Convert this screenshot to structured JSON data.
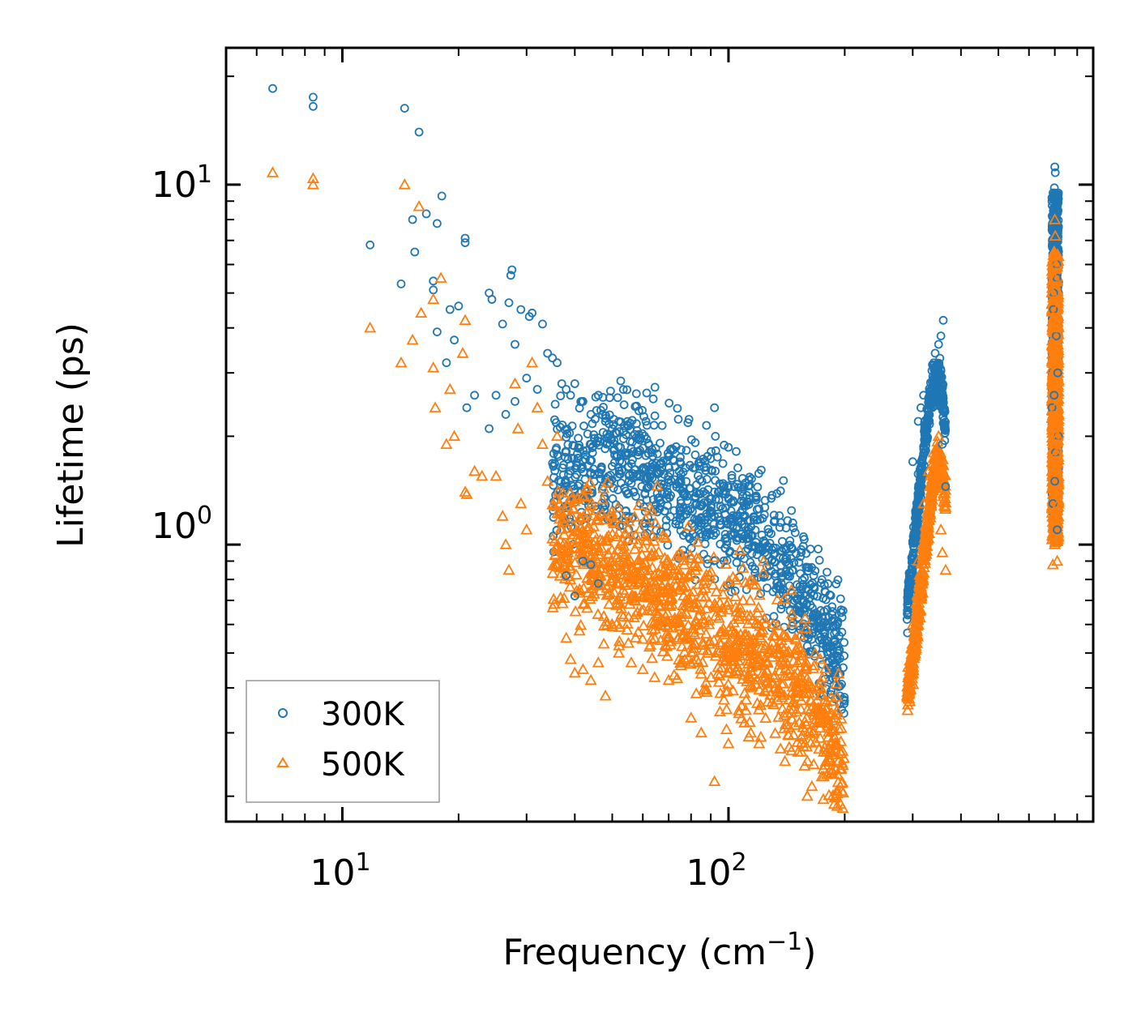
{
  "chart_data": {
    "type": "scatter",
    "title": "",
    "xlabel": "Frequency (cm",
    "xlabel_sup": "−1",
    "xlabel_suffix": ")",
    "ylabel": "Lifetime (ps)",
    "xscale": "log",
    "yscale": "log",
    "xlim": [
      5,
      880
    ],
    "ylim": [
      0.17,
      24
    ],
    "x_ticks": [
      {
        "base": "10",
        "exp": "1",
        "value": 10
      },
      {
        "base": "10",
        "exp": "2",
        "value": 100
      }
    ],
    "y_ticks": [
      {
        "base": "10",
        "exp": "0",
        "value": 1
      },
      {
        "base": "10",
        "exp": "1",
        "value": 10
      }
    ],
    "legend_position": "lower-left",
    "series": [
      {
        "name": "300K",
        "color": "#1f77b4",
        "marker": "circle",
        "points": [
          [
            6.6,
            18.5
          ],
          [
            8.4,
            17.5
          ],
          [
            8.4,
            16.5
          ],
          [
            14.5,
            16.3
          ],
          [
            15.8,
            14.0
          ],
          [
            11.8,
            6.8
          ],
          [
            14.2,
            5.3
          ],
          [
            15.2,
            8.0
          ],
          [
            15.4,
            6.5
          ],
          [
            16.5,
            8.3
          ],
          [
            17.2,
            5.4
          ],
          [
            17.2,
            5.1
          ],
          [
            17.6,
            7.8
          ],
          [
            18.1,
            9.3
          ],
          [
            19.0,
            4.5
          ],
          [
            20.0,
            4.6
          ],
          [
            20.8,
            6.9
          ],
          [
            20.8,
            7.1
          ],
          [
            17.6,
            3.9
          ],
          [
            18.6,
            3.2
          ],
          [
            19.5,
            3.7
          ],
          [
            22.0,
            2.6
          ],
          [
            24.0,
            5.0
          ],
          [
            24.4,
            4.8
          ],
          [
            26.0,
            4.1
          ],
          [
            27.0,
            4.7
          ],
          [
            27.3,
            5.6
          ],
          [
            27.5,
            5.8
          ],
          [
            28.0,
            3.6
          ],
          [
            29.0,
            4.5
          ],
          [
            30.5,
            4.3
          ],
          [
            31.0,
            4.4
          ],
          [
            33.0,
            4.1
          ],
          [
            21.0,
            2.4
          ],
          [
            24.0,
            2.1
          ],
          [
            25.0,
            2.6
          ],
          [
            26.5,
            2.3
          ],
          [
            28.0,
            2.5
          ],
          [
            30.0,
            2.9
          ],
          [
            32.0,
            2.7
          ],
          [
            34.0,
            3.4
          ],
          [
            35.0,
            3.3
          ],
          [
            36.0,
            3.2
          ],
          [
            37.0,
            2.8
          ],
          [
            38.0,
            2.7
          ],
          [
            39.0,
            2.6
          ],
          [
            40.0,
            2.8
          ],
          [
            42.0,
            2.5
          ],
          [
            44.0,
            2.3
          ],
          [
            46.0,
            2.6
          ],
          [
            48.0,
            2.2
          ],
          [
            50.0,
            2.1
          ],
          [
            52.0,
            2.2
          ],
          [
            92.0,
            2.4
          ],
          [
            92.5,
            2.0
          ],
          [
            38.0,
            0.82
          ],
          [
            40.0,
            0.72
          ],
          [
            42.0,
            0.9
          ],
          [
            44.0,
            0.88
          ],
          [
            46.0,
            0.78
          ],
          [
            360.0,
            4.2
          ],
          [
            355.0,
            3.8
          ],
          [
            350.0,
            3.6
          ],
          [
            365.0,
            1.45
          ],
          [
            358.0,
            1.9
          ],
          [
            310.0,
            2.2
          ],
          [
            315.0,
            2.4
          ],
          [
            320.0,
            2.6
          ],
          [
            300.0,
            1.7
          ],
          [
            290.0,
            0.62
          ],
          [
            700.0,
            11.2
          ],
          [
            702.0,
            10.8
          ],
          [
            698.0,
            9.8
          ],
          [
            705.0,
            9.0
          ],
          [
            690.0,
            7.0
          ],
          [
            708.0,
            6.0
          ],
          [
            695.0,
            5.0
          ],
          [
            712.0,
            3.0
          ],
          [
            688.0,
            2.4
          ],
          [
            715.0,
            2.0
          ],
          [
            692.0,
            1.3
          ],
          [
            710.0,
            1.1
          ],
          [
            700.0,
            1.5
          ],
          [
            703.0,
            1.8
          ],
          [
            697.0,
            2.6
          ],
          [
            706.0,
            3.8
          ],
          [
            694.0,
            4.5
          ],
          [
            709.0,
            5.5
          ],
          [
            701.0,
            7.5
          ],
          [
            699.0,
            8.5
          ]
        ]
      },
      {
        "name": "500K",
        "color": "#ff7f0e",
        "marker": "triangle",
        "points": [
          [
            6.6,
            10.8
          ],
          [
            8.4,
            10.4
          ],
          [
            8.4,
            10.0
          ],
          [
            14.5,
            10.0
          ],
          [
            15.8,
            8.7
          ],
          [
            11.8,
            4.0
          ],
          [
            14.2,
            3.2
          ],
          [
            15.2,
            3.7
          ],
          [
            16.0,
            4.4
          ],
          [
            17.2,
            4.8
          ],
          [
            17.2,
            3.1
          ],
          [
            17.4,
            2.4
          ],
          [
            18.0,
            5.5
          ],
          [
            18.6,
            1.9
          ],
          [
            19.0,
            2.7
          ],
          [
            19.5,
            2.0
          ],
          [
            20.5,
            3.4
          ],
          [
            20.8,
            4.2
          ],
          [
            20.8,
            1.4
          ],
          [
            21.0,
            1.38
          ],
          [
            22.0,
            1.6
          ],
          [
            23.0,
            1.55
          ],
          [
            25.0,
            1.55
          ],
          [
            26.0,
            1.2
          ],
          [
            26.5,
            1.0
          ],
          [
            27.0,
            0.85
          ],
          [
            28.0,
            2.8
          ],
          [
            28.5,
            2.1
          ],
          [
            29.0,
            1.3
          ],
          [
            30.0,
            1.1
          ],
          [
            31.0,
            3.2
          ],
          [
            32.0,
            2.4
          ],
          [
            33.0,
            1.9
          ],
          [
            34.0,
            1.5
          ],
          [
            36.0,
            2.0
          ],
          [
            38.0,
            0.55
          ],
          [
            39.0,
            0.48
          ],
          [
            40.0,
            0.44
          ],
          [
            42.0,
            0.45
          ],
          [
            44.0,
            0.42
          ],
          [
            46.0,
            0.47
          ],
          [
            48.0,
            0.38
          ],
          [
            52.0,
            0.5
          ],
          [
            56.0,
            0.47
          ],
          [
            60.0,
            0.45
          ],
          [
            70.0,
            0.42
          ],
          [
            80.0,
            0.33
          ],
          [
            85.0,
            0.3
          ],
          [
            92.0,
            0.22
          ],
          [
            100.0,
            0.28
          ],
          [
            110.0,
            0.32
          ],
          [
            120.0,
            0.28
          ],
          [
            140.0,
            0.25
          ],
          [
            160.0,
            0.2
          ],
          [
            180.0,
            0.23
          ],
          [
            195.0,
            0.19
          ],
          [
            190.0,
            0.2
          ],
          [
            365.0,
            0.85
          ],
          [
            358.0,
            0.95
          ],
          [
            355.0,
            1.1
          ],
          [
            350.0,
            2.0
          ],
          [
            340.0,
            1.8
          ],
          [
            330.0,
            1.6
          ],
          [
            320.0,
            1.3
          ],
          [
            310.0,
            0.9
          ],
          [
            300.0,
            0.6
          ],
          [
            290.0,
            0.38
          ],
          [
            700.0,
            8.0
          ],
          [
            702.0,
            7.2
          ],
          [
            698.0,
            6.5
          ],
          [
            705.0,
            6.0
          ],
          [
            690.0,
            5.0
          ],
          [
            708.0,
            4.0
          ],
          [
            695.0,
            3.2
          ],
          [
            712.0,
            2.0
          ],
          [
            688.0,
            1.6
          ],
          [
            715.0,
            1.3
          ],
          [
            692.0,
            0.88
          ],
          [
            710.0,
            0.9
          ],
          [
            700.0,
            1.0
          ],
          [
            703.0,
            2.4
          ],
          [
            697.0,
            2.8
          ],
          [
            706.0,
            1.8
          ],
          [
            694.0,
            3.6
          ],
          [
            709.0,
            4.5
          ],
          [
            701.0,
            5.5
          ],
          [
            699.0,
            1.2
          ]
        ]
      }
    ],
    "dense_regions": [
      {
        "series": "300K",
        "x_range": [
          35,
          200
        ],
        "lifetime_at": [
          [
            35,
            1.5
          ],
          [
            50,
            1.7
          ],
          [
            60,
            1.65
          ],
          [
            70,
            1.45
          ],
          [
            90,
            1.25
          ],
          [
            110,
            1.15
          ],
          [
            130,
            1.0
          ],
          [
            150,
            0.82
          ],
          [
            170,
            0.65
          ],
          [
            190,
            0.5
          ],
          [
            200,
            0.45
          ]
        ],
        "spread": 0.32
      },
      {
        "series": "500K",
        "x_range": [
          35,
          200
        ],
        "lifetime_at": [
          [
            35,
            1.05
          ],
          [
            50,
            0.85
          ],
          [
            60,
            0.8
          ],
          [
            70,
            0.72
          ],
          [
            90,
            0.58
          ],
          [
            110,
            0.52
          ],
          [
            130,
            0.46
          ],
          [
            150,
            0.4
          ],
          [
            170,
            0.34
          ],
          [
            190,
            0.27
          ],
          [
            200,
            0.25
          ]
        ],
        "spread": 0.33
      },
      {
        "series": "300K",
        "x_range": [
          290,
          365
        ],
        "lifetime_at": [
          [
            290,
            0.65
          ],
          [
            300,
            0.9
          ],
          [
            310,
            1.3
          ],
          [
            320,
            1.8
          ],
          [
            330,
            2.4
          ],
          [
            340,
            2.8
          ],
          [
            350,
            2.9
          ],
          [
            358,
            2.6
          ],
          [
            365,
            2.0
          ]
        ],
        "spread": 0.1
      },
      {
        "series": "500K",
        "x_range": [
          290,
          365
        ],
        "lifetime_at": [
          [
            290,
            0.38
          ],
          [
            300,
            0.48
          ],
          [
            310,
            0.65
          ],
          [
            320,
            0.9
          ],
          [
            330,
            1.2
          ],
          [
            340,
            1.55
          ],
          [
            350,
            1.75
          ],
          [
            358,
            1.6
          ],
          [
            365,
            1.3
          ]
        ],
        "spread": 0.1
      },
      {
        "series": "300K",
        "x_range": [
          688,
          716
        ],
        "lifetime_at": [
          [
            688,
            1.2
          ],
          [
            716,
            9.5
          ]
        ],
        "spread": 0.0
      },
      {
        "series": "500K",
        "x_range": [
          688,
          716
        ],
        "lifetime_at": [
          [
            688,
            1.0
          ],
          [
            716,
            6.5
          ]
        ],
        "spread": 0.0
      }
    ]
  }
}
